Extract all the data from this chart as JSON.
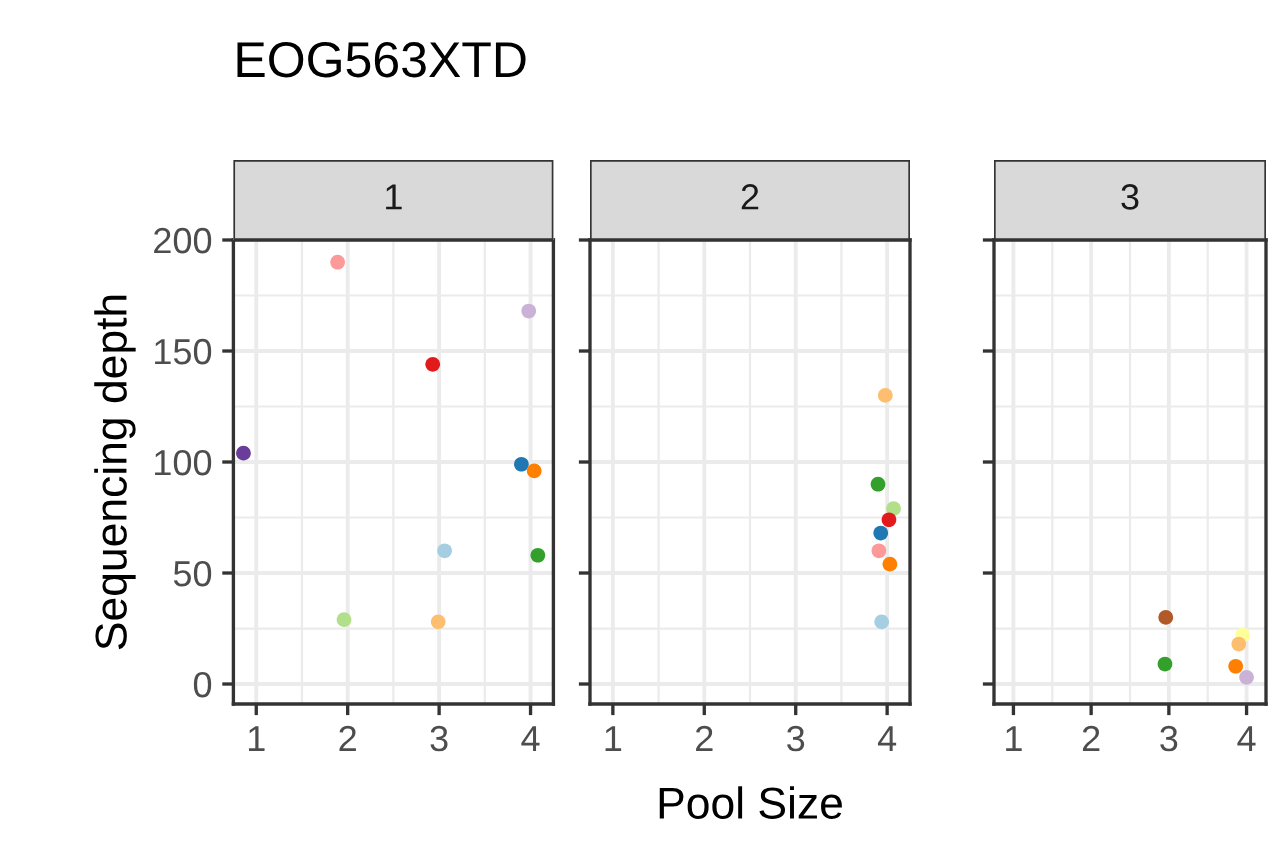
{
  "chart_data": [
    {
      "type": "scatter",
      "title": "EOG563XTD",
      "subtitle": "1",
      "ylabel": "Sequencing depth",
      "xlim": [
        0.75,
        4.25
      ],
      "xticks": [
        1,
        2,
        3,
        4
      ],
      "ylim": [
        -9,
        200
      ],
      "yticks": [
        0,
        50,
        100,
        150,
        200
      ],
      "grid": true,
      "marker": "circle",
      "x": [
        0.86,
        1.89,
        3.98,
        2.93,
        3.9,
        4.04,
        3.06,
        4.08,
        1.96,
        2.99
      ],
      "values": [
        104,
        190,
        168,
        144,
        99,
        96,
        60,
        58,
        29,
        28
      ],
      "colors": [
        "#6a3d9a",
        "#fb9a99",
        "#cab2d6",
        "#e31a1c",
        "#1f78b4",
        "#ff7f00",
        "#a6cee3",
        "#33a02c",
        "#b2df8a",
        "#fdbf6f"
      ]
    },
    {
      "type": "scatter",
      "subtitle": "2",
      "xlabel": "Pool Size",
      "xlim": [
        0.75,
        4.25
      ],
      "xticks": [
        1,
        2,
        3,
        4
      ],
      "ylim": [
        -9,
        200
      ],
      "yticks": [
        0,
        50,
        100,
        150,
        200
      ],
      "grid": true,
      "marker": "circle",
      "tick_labels": "x",
      "x": [
        3.98,
        3.9,
        4.07,
        4.02,
        3.93,
        3.91,
        4.03,
        3.94
      ],
      "values": [
        130,
        90,
        79,
        74,
        68,
        60,
        54,
        28
      ],
      "colors": [
        "#fdbf6f",
        "#33a02c",
        "#b2df8a",
        "#e31a1c",
        "#1f78b4",
        "#fb9a99",
        "#ff7f00",
        "#a6cee3"
      ]
    },
    {
      "type": "scatter",
      "subtitle": "3",
      "xlim": [
        0.75,
        4.25
      ],
      "xticks": [
        1,
        2,
        3,
        4
      ],
      "ylim": [
        -9,
        200
      ],
      "yticks": [
        0,
        50,
        100,
        150,
        200
      ],
      "grid": true,
      "marker": "circle",
      "tick_labels": "x",
      "x": [
        2.96,
        2.95,
        3.95,
        3.9,
        3.86,
        4.0
      ],
      "values": [
        30,
        9,
        22,
        18,
        8,
        3
      ],
      "colors": [
        "#b15928",
        "#33a02c",
        "#ffff99",
        "#fdbf6f",
        "#ff7f00",
        "#cab2d6"
      ]
    }
  ]
}
